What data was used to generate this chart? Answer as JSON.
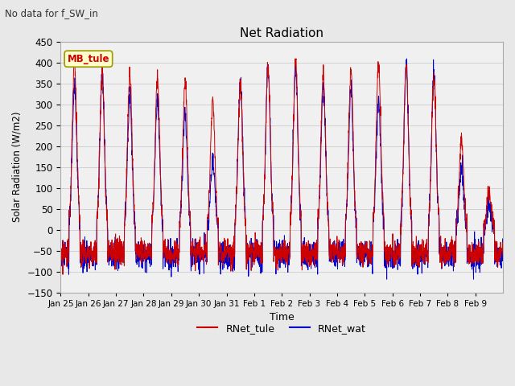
{
  "title": "Net Radiation",
  "subtitle": "No data for f_SW_in",
  "xlabel": "Time",
  "ylabel": "Solar Radiation (W/m2)",
  "ylim": [
    -150,
    450
  ],
  "yticks": [
    -150,
    -100,
    -50,
    0,
    50,
    100,
    150,
    200,
    250,
    300,
    350,
    400,
    450
  ],
  "xtick_labels": [
    "Jan 25",
    "Jan 26",
    "Jan 27",
    "Jan 28",
    "Jan 29",
    "Jan 30",
    "Jan 31",
    "Feb 1",
    "Feb 2",
    "Feb 3",
    "Feb 4",
    "Feb 5",
    "Feb 6",
    "Feb 7",
    "Feb 8",
    "Feb 9"
  ],
  "legend_labels": [
    "RNet_tule",
    "RNet_wat"
  ],
  "line_colors": [
    "#cc0000",
    "#0000cc"
  ],
  "annotation_text": "MB_tule",
  "annotation_color": "#cc0000",
  "annotation_bg": "#ffffcc",
  "annotation_border": "#999900",
  "bg_color": "#e8e8e8",
  "plot_bg": "#f0f0f0",
  "n_days": 16,
  "pts_per_day": 144,
  "night_value": -55
}
